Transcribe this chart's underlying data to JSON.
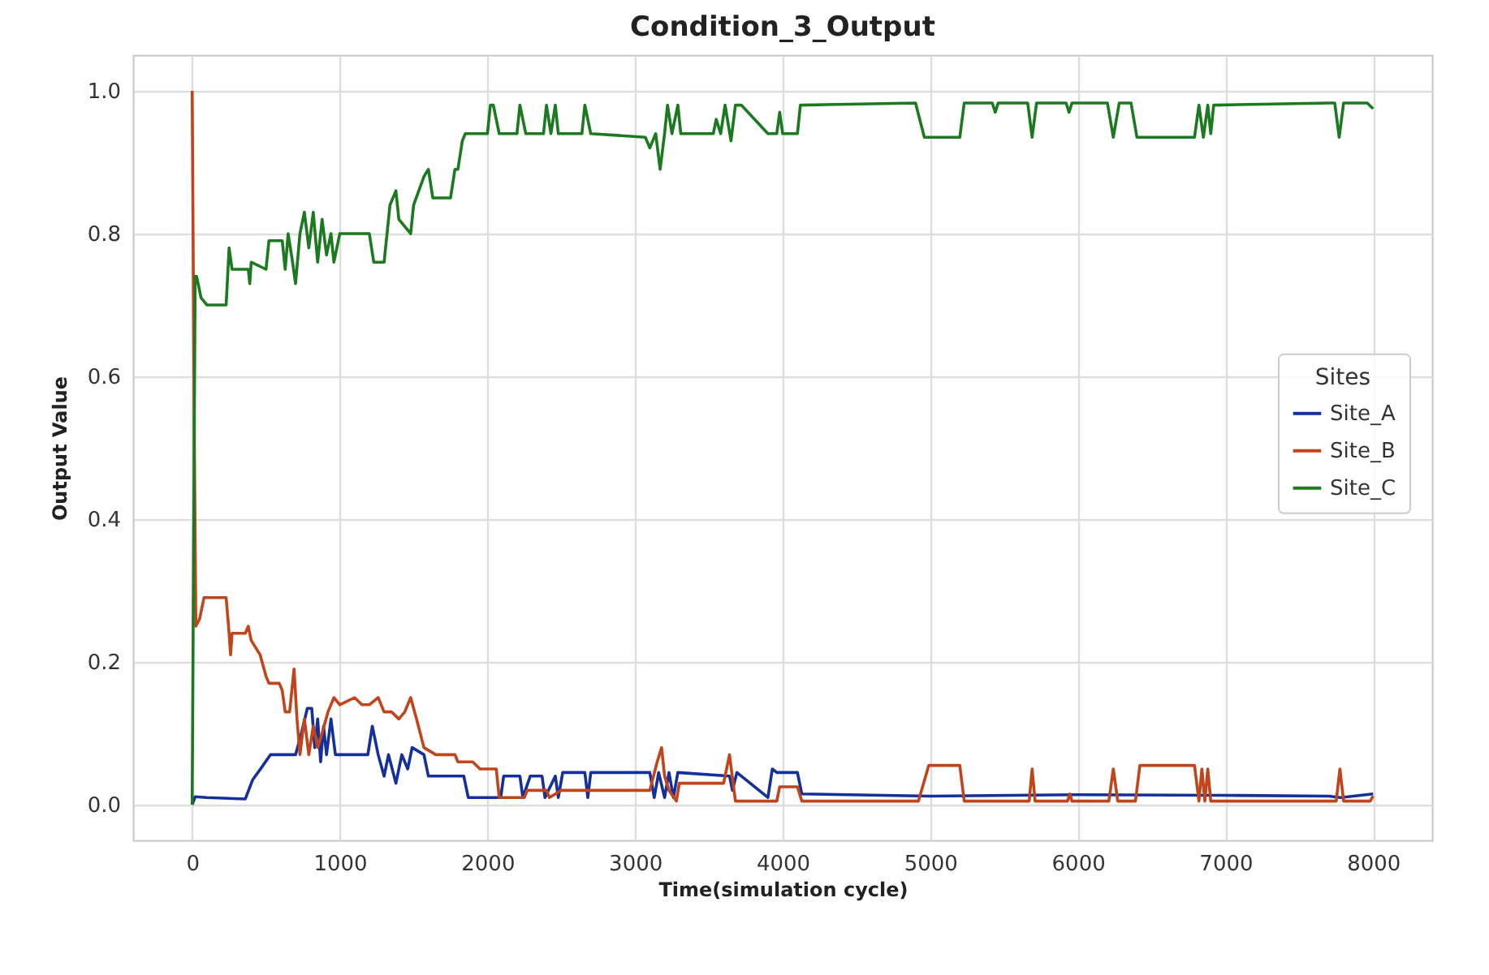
{
  "chart_data": {
    "type": "line",
    "title": "Condition_3_Output",
    "xlabel": "Time(simulation cycle)",
    "ylabel": "Output Value",
    "legend_title": "Sites",
    "legend": "right",
    "grid": true,
    "xlim": [
      -400,
      8400
    ],
    "xticks": [
      0,
      1000,
      2000,
      3000,
      4000,
      5000,
      6000,
      7000,
      8000
    ],
    "ylim": [
      -0.05,
      1.05
    ],
    "yticks": [
      {
        "value": 0,
        "label": "0.0"
      },
      {
        "value": 0.2,
        "label": "0.2"
      },
      {
        "value": 0.4,
        "label": "0.4"
      },
      {
        "value": 0.6,
        "label": "0.6"
      },
      {
        "value": 0.8,
        "label": "0.8"
      },
      {
        "value": 1,
        "label": "1.0"
      }
    ],
    "series": [
      {
        "name": "Site_A",
        "color": "#15309a",
        "x": [
          0,
          20,
          100,
          360,
          410,
          480,
          530,
          700,
          740,
          780,
          810,
          830,
          850,
          870,
          890,
          910,
          940,
          970,
          1100,
          1190,
          1220,
          1260,
          1300,
          1330,
          1380,
          1420,
          1460,
          1490,
          1570,
          1600,
          1840,
          1870,
          2090,
          2110,
          2220,
          2240,
          2290,
          2370,
          2390,
          2460,
          2480,
          2510,
          2660,
          2680,
          2700,
          3100,
          3130,
          3160,
          3200,
          3230,
          3260,
          3290,
          3640,
          3660,
          3690,
          3900,
          3930,
          3960,
          4100,
          4130,
          5000,
          6000,
          7000,
          7700,
          7780,
          8000
        ],
        "values": [
          0,
          0.011,
          0.01,
          0.008,
          0.035,
          0.055,
          0.07,
          0.07,
          0.1,
          0.135,
          0.135,
          0.08,
          0.12,
          0.06,
          0.11,
          0.07,
          0.12,
          0.07,
          0.07,
          0.07,
          0.11,
          0.07,
          0.04,
          0.07,
          0.03,
          0.07,
          0.05,
          0.08,
          0.07,
          0.04,
          0.04,
          0.01,
          0.01,
          0.04,
          0.04,
          0.01,
          0.04,
          0.04,
          0.01,
          0.04,
          0.01,
          0.045,
          0.045,
          0.01,
          0.045,
          0.045,
          0.01,
          0.045,
          0.01,
          0.045,
          0.01,
          0.045,
          0.04,
          0.02,
          0.045,
          0.01,
          0.05,
          0.045,
          0.045,
          0.015,
          0.012,
          0.014,
          0.013,
          0.012,
          0.01,
          0.015
        ]
      },
      {
        "name": "Site_B",
        "color": "#c2441a",
        "x": [
          0,
          15,
          25,
          50,
          80,
          230,
          250,
          260,
          270,
          360,
          380,
          400,
          430,
          460,
          500,
          520,
          590,
          610,
          630,
          660,
          690,
          710,
          730,
          760,
          790,
          820,
          850,
          880,
          920,
          960,
          1000,
          1100,
          1150,
          1200,
          1260,
          1300,
          1350,
          1400,
          1440,
          1480,
          1520,
          1570,
          1650,
          1780,
          1800,
          1900,
          1950,
          2060,
          2080,
          2250,
          2270,
          2400,
          2420,
          2500,
          2700,
          3100,
          3150,
          3180,
          3200,
          3230,
          3280,
          3300,
          3600,
          3640,
          3680,
          3960,
          3980,
          4100,
          4130,
          4920,
          4990,
          5200,
          5230,
          5670,
          5690,
          5710,
          5930,
          5945,
          5960,
          6210,
          6240,
          6270,
          6390,
          6420,
          6790,
          6820,
          6840,
          6860,
          6880,
          6900,
          7750,
          7775,
          7800,
          7980,
          8000
        ],
        "values": [
          1.0,
          0.5,
          0.25,
          0.26,
          0.29,
          0.29,
          0.24,
          0.21,
          0.24,
          0.24,
          0.25,
          0.23,
          0.22,
          0.21,
          0.18,
          0.17,
          0.17,
          0.16,
          0.13,
          0.13,
          0.19,
          0.12,
          0.07,
          0.12,
          0.07,
          0.11,
          0.08,
          0.1,
          0.13,
          0.15,
          0.14,
          0.15,
          0.14,
          0.14,
          0.15,
          0.13,
          0.13,
          0.12,
          0.13,
          0.15,
          0.12,
          0.08,
          0.07,
          0.07,
          0.06,
          0.06,
          0.05,
          0.05,
          0.01,
          0.01,
          0.02,
          0.02,
          0.01,
          0.02,
          0.02,
          0.02,
          0.06,
          0.08,
          0.04,
          0.02,
          0.005,
          0.03,
          0.03,
          0.07,
          0.005,
          0.005,
          0.025,
          0.025,
          0.005,
          0.005,
          0.055,
          0.055,
          0.005,
          0.005,
          0.05,
          0.005,
          0.005,
          0.015,
          0.005,
          0.005,
          0.05,
          0.005,
          0.005,
          0.055,
          0.055,
          0.005,
          0.05,
          0.005,
          0.05,
          0.005,
          0.005,
          0.05,
          0.005,
          0.005,
          0.012
        ]
      },
      {
        "name": "Site_C",
        "color": "#1b7a1f",
        "x": [
          0,
          20,
          30,
          60,
          100,
          230,
          250,
          270,
          380,
          390,
          400,
          500,
          520,
          610,
          630,
          650,
          680,
          700,
          730,
          760,
          790,
          820,
          850,
          880,
          910,
          940,
          960,
          1000,
          1200,
          1230,
          1300,
          1320,
          1340,
          1380,
          1400,
          1480,
          1500,
          1570,
          1600,
          1630,
          1650,
          1750,
          1780,
          1800,
          1830,
          1850,
          2000,
          2020,
          2040,
          2080,
          2200,
          2220,
          2260,
          2380,
          2400,
          2430,
          2460,
          2480,
          2640,
          2660,
          2700,
          3070,
          3100,
          3140,
          3170,
          3200,
          3220,
          3250,
          3290,
          3310,
          3530,
          3550,
          3580,
          3610,
          3650,
          3680,
          3720,
          3900,
          3960,
          3980,
          4000,
          4100,
          4120,
          4900,
          4960,
          5200,
          5230,
          5420,
          5440,
          5460,
          5660,
          5690,
          5720,
          5920,
          5940,
          5960,
          6200,
          6240,
          6280,
          6360,
          6400,
          6790,
          6820,
          6850,
          6880,
          6900,
          6920,
          7700,
          7740,
          7770,
          7800,
          7830,
          7960,
          8000
        ],
        "values": [
          0,
          0.74,
          0.74,
          0.71,
          0.7,
          0.7,
          0.78,
          0.75,
          0.75,
          0.73,
          0.76,
          0.75,
          0.79,
          0.79,
          0.75,
          0.8,
          0.76,
          0.73,
          0.8,
          0.83,
          0.78,
          0.83,
          0.76,
          0.82,
          0.77,
          0.8,
          0.76,
          0.8,
          0.8,
          0.76,
          0.76,
          0.8,
          0.84,
          0.86,
          0.82,
          0.8,
          0.84,
          0.88,
          0.89,
          0.85,
          0.85,
          0.85,
          0.89,
          0.89,
          0.93,
          0.94,
          0.94,
          0.98,
          0.98,
          0.94,
          0.94,
          0.98,
          0.94,
          0.94,
          0.98,
          0.94,
          0.98,
          0.94,
          0.94,
          0.98,
          0.94,
          0.935,
          0.92,
          0.94,
          0.89,
          0.94,
          0.98,
          0.94,
          0.98,
          0.94,
          0.94,
          0.96,
          0.94,
          0.98,
          0.93,
          0.98,
          0.98,
          0.94,
          0.94,
          0.97,
          0.94,
          0.94,
          0.98,
          0.983,
          0.935,
          0.935,
          0.983,
          0.983,
          0.97,
          0.983,
          0.983,
          0.935,
          0.983,
          0.983,
          0.97,
          0.983,
          0.983,
          0.935,
          0.983,
          0.983,
          0.935,
          0.935,
          0.98,
          0.935,
          0.98,
          0.94,
          0.98,
          0.983,
          0.983,
          0.935,
          0.983,
          0.983,
          0.983,
          0.975
        ]
      }
    ]
  }
}
